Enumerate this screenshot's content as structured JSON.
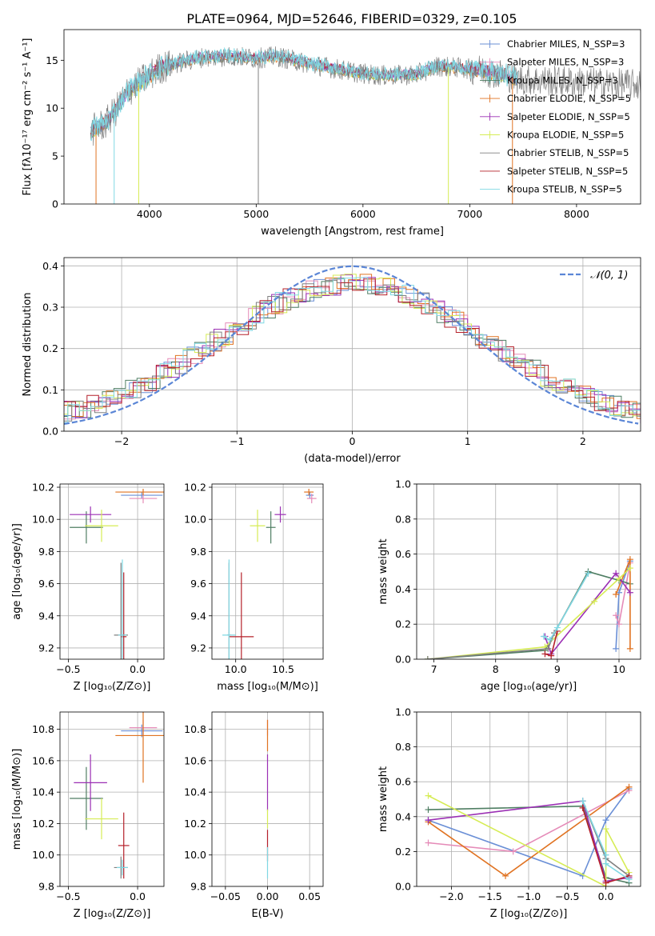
{
  "figure": {
    "title": "PLATE=0964, MJD=52646, FIBERID=0329, z=0.105"
  },
  "colors": {
    "chabrier_miles": "#6a8fd6",
    "salpeter_miles": "#e58bb8",
    "kroupa_miles": "#4f7e63",
    "chabrier_elodie": "#e07322",
    "salpeter_elodie": "#9b2fb4",
    "kroupa_elodie": "#d6ec55",
    "chabrier_stelib": "#808080",
    "salpeter_stelib": "#b5202a",
    "kroupa_stelib": "#7fd8e3"
  },
  "chart_data": [
    {
      "id": "spectrum",
      "type": "line",
      "xlabel": "wavelength [Angstrom, rest frame]",
      "ylabel": "Flux [fλ10⁻¹⁷ erg cm⁻² s⁻¹ A⁻¹]",
      "xlim": [
        3200,
        8600
      ],
      "ylim": [
        0,
        18.2
      ],
      "xticks": [
        4000,
        5000,
        6000,
        7000,
        8000
      ],
      "yticks": [
        0,
        5,
        10,
        15
      ],
      "legend": "top-right",
      "legend_entries": [
        "Chabrier MILES, N_SSP=3",
        "Salpeter MILES, N_SSP=3",
        "Kroupa MILES, N_SSP=3",
        "Chabrier ELODIE, N_SSP=5",
        "Salpeter ELODIE, N_SSP=5",
        "Kroupa ELODIE, N_SSP=5",
        "Chabrier STELIB, N_SSP=5",
        "Salpeter STELIB, N_SSP=5",
        "Kroupa STELIB, N_SSP=5"
      ],
      "continuum": {
        "x": [
          3450,
          3600,
          3700,
          3800,
          3950,
          4100,
          4300,
          4500,
          4800,
          5000,
          5200,
          5500,
          5800,
          6000,
          6200,
          6500,
          6700,
          6900,
          7100,
          7300,
          7450
        ],
        "y": [
          7.6,
          8.5,
          10.0,
          11.8,
          13.0,
          14.2,
          14.8,
          15.3,
          15.4,
          15.2,
          15.4,
          14.6,
          14.0,
          13.6,
          13.4,
          13.5,
          14.4,
          14.2,
          14.0,
          13.5,
          13.0
        ]
      },
      "observed_range": [
        3450,
        8600
      ],
      "model_range": [
        3450,
        7450
      ],
      "dropouts": [
        {
          "x": 3500,
          "series": "chabrier_elodie"
        },
        {
          "x": 3670,
          "series": "kroupa_stelib"
        },
        {
          "x": 3900,
          "series": "kroupa_elodie"
        },
        {
          "x": 5020,
          "series": "chabrier_stelib"
        },
        {
          "x": 6800,
          "series": "kroupa_elodie"
        },
        {
          "x": 7400,
          "series": "chabrier_elodie"
        }
      ]
    },
    {
      "id": "residuals",
      "type": "line",
      "xlabel": "(data-model)/error",
      "ylabel": "Normed distribution",
      "xlim": [
        -2.5,
        2.5
      ],
      "ylim": [
        0,
        0.42
      ],
      "xticks": [
        -2,
        -1,
        0,
        1,
        2
      ],
      "yticks": [
        0.0,
        0.1,
        0.2,
        0.3,
        0.4
      ],
      "grid": true,
      "legend": "top-right",
      "legend_entries": [
        "𝒩(0, 1)"
      ],
      "bin_width": 0.1
    },
    {
      "id": "age_vs_z",
      "type": "scatter",
      "xlabel": "Z [log₁₀(Z/Z⊙)]",
      "ylabel": "age  [log₁₀(age/yr)]",
      "xlim": [
        -0.56,
        0.19
      ],
      "ylim": [
        9.13,
        10.22
      ],
      "xticks": [
        -0.5,
        0.0
      ],
      "yticks": [
        9.2,
        9.4,
        9.6,
        9.8,
        10.0,
        10.2
      ],
      "grid": true,
      "points": [
        {
          "series": "chabrier_miles",
          "x": 0.03,
          "y": 10.15,
          "xerr": 0.15,
          "yerr": 0.02
        },
        {
          "series": "salpeter_miles",
          "x": 0.04,
          "y": 10.13,
          "xerr": 0.1,
          "yerr": 0.03
        },
        {
          "series": "kroupa_miles",
          "x": -0.37,
          "y": 9.95,
          "xerr": 0.12,
          "yerr": 0.1
        },
        {
          "series": "chabrier_elodie",
          "x": 0.04,
          "y": 10.17,
          "xerr": 0.2,
          "yerr": 0.02
        },
        {
          "series": "salpeter_elodie",
          "x": -0.34,
          "y": 10.03,
          "xerr": 0.15,
          "yerr": 0.05
        },
        {
          "series": "kroupa_elodie",
          "x": -0.26,
          "y": 9.96,
          "xerr": 0.12,
          "yerr": 0.1
        },
        {
          "series": "chabrier_stelib",
          "x": -0.12,
          "y": 9.28,
          "xerr": 0.05,
          "yerr": 0.45
        },
        {
          "series": "salpeter_stelib",
          "x": -0.1,
          "y": 9.27,
          "xerr": 0.02,
          "yerr": 0.4
        },
        {
          "series": "kroupa_stelib",
          "x": -0.11,
          "y": 9.28,
          "xerr": 0.03,
          "yerr": 0.47
        }
      ]
    },
    {
      "id": "age_vs_mass",
      "type": "scatter",
      "xlabel": "mass [log₁₀(M/M⊙)]",
      "ylabel": "",
      "xlim": [
        9.75,
        10.92
      ],
      "ylim": [
        9.13,
        10.22
      ],
      "xticks": [
        10.0,
        10.5
      ],
      "yticks": [
        9.2,
        9.4,
        9.6,
        9.8,
        10.0,
        10.2
      ],
      "grid": true,
      "points": [
        {
          "series": "chabrier_miles",
          "x": 10.78,
          "y": 10.15,
          "xerr": 0.04,
          "yerr": 0.02
        },
        {
          "series": "salpeter_miles",
          "x": 10.8,
          "y": 10.13,
          "xerr": 0.05,
          "yerr": 0.03
        },
        {
          "series": "kroupa_miles",
          "x": 10.37,
          "y": 9.95,
          "xerr": 0.05,
          "yerr": 0.1
        },
        {
          "series": "chabrier_elodie",
          "x": 10.77,
          "y": 10.17,
          "xerr": 0.05,
          "yerr": 0.02
        },
        {
          "series": "salpeter_elodie",
          "x": 10.47,
          "y": 10.03,
          "xerr": 0.06,
          "yerr": 0.05
        },
        {
          "series": "kroupa_elodie",
          "x": 10.23,
          "y": 9.96,
          "xerr": 0.08,
          "yerr": 0.1
        },
        {
          "series": "chabrier_stelib",
          "x": 9.93,
          "y": 9.28,
          "xerr": 0.02,
          "yerr": 0.45
        },
        {
          "series": "salpeter_stelib",
          "x": 10.06,
          "y": 9.27,
          "xerr": 0.13,
          "yerr": 0.4
        },
        {
          "series": "kroupa_stelib",
          "x": 9.93,
          "y": 9.28,
          "xerr": 0.07,
          "yerr": 0.47
        }
      ]
    },
    {
      "id": "weight_vs_age",
      "type": "line",
      "xlabel": "age  [log₁₀(age/yr)]",
      "ylabel": "mass weight",
      "xlim": [
        6.72,
        10.35
      ],
      "ylim": [
        0,
        1.0
      ],
      "xticks": [
        7,
        8,
        9,
        10
      ],
      "yticks": [
        0.0,
        0.2,
        0.4,
        0.6,
        0.8,
        1.0
      ],
      "grid": true,
      "series": [
        {
          "series": "chabrier_miles",
          "x": [
            9.95,
            10.0,
            10.18
          ],
          "y": [
            0.06,
            0.38,
            0.56
          ]
        },
        {
          "series": "salpeter_miles",
          "x": [
            9.95,
            10.0,
            10.18
          ],
          "y": [
            0.25,
            0.2,
            0.55
          ]
        },
        {
          "series": "kroupa_miles",
          "x": [
            6.9,
            8.8,
            9.5,
            10.0,
            10.18
          ],
          "y": [
            0.0,
            0.05,
            0.5,
            0.45,
            0.43
          ]
        },
        {
          "series": "chabrier_elodie",
          "x": [
            9.95,
            10.18,
            10.18
          ],
          "y": [
            0.37,
            0.57,
            0.06
          ]
        },
        {
          "series": "salpeter_elodie",
          "x": [
            8.8,
            8.9,
            9.95,
            10.18
          ],
          "y": [
            0.13,
            0.03,
            0.49,
            0.38
          ]
        },
        {
          "series": "kroupa_elodie",
          "x": [
            6.9,
            8.8,
            9.6,
            10.0,
            10.18
          ],
          "y": [
            0.0,
            0.07,
            0.33,
            0.46,
            0.52
          ]
        },
        {
          "series": "chabrier_stelib",
          "x": [
            6.9,
            8.85,
            8.95,
            9.5
          ],
          "y": [
            0.0,
            0.06,
            0.15,
            0.49
          ]
        },
        {
          "series": "salpeter_stelib",
          "x": [
            8.8,
            8.9,
            9.0
          ],
          "y": [
            0.03,
            0.02,
            0.16
          ]
        },
        {
          "series": "kroupa_stelib",
          "x": [
            8.78,
            8.88,
            9.0,
            9.5
          ],
          "y": [
            0.13,
            0.11,
            0.18,
            0.49
          ]
        }
      ]
    },
    {
      "id": "mass_vs_z",
      "type": "scatter",
      "xlabel": "Z [log₁₀(Z/Z⊙)]",
      "ylabel": "mass [log₁₀(M/M⊙)]",
      "xlim": [
        -0.56,
        0.19
      ],
      "ylim": [
        9.8,
        10.91
      ],
      "xticks": [
        -0.5,
        0.0
      ],
      "yticks": [
        9.8,
        10.0,
        10.2,
        10.4,
        10.6,
        10.8
      ],
      "grid": true,
      "points": [
        {
          "series": "chabrier_miles",
          "x": 0.03,
          "y": 10.79,
          "xerr": 0.15,
          "yerr": 0.04
        },
        {
          "series": "salpeter_miles",
          "x": 0.04,
          "y": 10.81,
          "xerr": 0.1,
          "yerr": 0.05
        },
        {
          "series": "kroupa_miles",
          "x": -0.37,
          "y": 10.36,
          "xerr": 0.12,
          "yerr": 0.2
        },
        {
          "series": "chabrier_elodie",
          "x": 0.04,
          "y": 10.76,
          "xerr": 0.2,
          "yerr": 0.3
        },
        {
          "series": "salpeter_elodie",
          "x": -0.34,
          "y": 10.46,
          "xerr": 0.12,
          "yerr": 0.18
        },
        {
          "series": "kroupa_elodie",
          "x": -0.26,
          "y": 10.23,
          "xerr": 0.12,
          "yerr": 0.13
        },
        {
          "series": "chabrier_stelib",
          "x": -0.12,
          "y": 9.92,
          "xerr": 0.05,
          "yerr": 0.07
        },
        {
          "series": "salpeter_stelib",
          "x": -0.1,
          "y": 10.06,
          "xerr": 0.04,
          "yerr": 0.21
        },
        {
          "series": "kroupa_stelib",
          "x": -0.11,
          "y": 9.92,
          "xerr": 0.04,
          "yerr": 0.05
        }
      ]
    },
    {
      "id": "mass_vs_ebv",
      "type": "scatter",
      "xlabel": "E(B-V)",
      "ylabel": "",
      "xlim": [
        -0.066,
        0.066
      ],
      "ylim": [
        9.8,
        10.91
      ],
      "xticks": [
        -0.05,
        0.0,
        0.05
      ],
      "yticks": [
        9.8,
        10.0,
        10.2,
        10.4,
        10.6,
        10.8
      ],
      "grid": true,
      "points": [
        {
          "series": "salpeter_miles",
          "x": 0.0,
          "y": 10.81,
          "xerr": 0.0,
          "yerr": 0.05
        },
        {
          "series": "chabrier_elodie",
          "x": 0.0,
          "y": 10.76,
          "xerr": 0.0,
          "yerr": 0.1
        },
        {
          "series": "salpeter_elodie",
          "x": 0.0,
          "y": 10.46,
          "xerr": 0.0,
          "yerr": 0.18
        },
        {
          "series": "kroupa_elodie",
          "x": 0.0,
          "y": 10.23,
          "xerr": 0.0,
          "yerr": 0.06
        },
        {
          "series": "salpeter_stelib",
          "x": 0.0,
          "y": 10.06,
          "xerr": 0.0,
          "yerr": 0.1
        },
        {
          "series": "kroupa_stelib",
          "x": 0.0,
          "y": 9.95,
          "xerr": 0.0,
          "yerr": 0.1
        }
      ]
    },
    {
      "id": "weight_vs_z",
      "type": "line",
      "xlabel": "Z [log₁₀(Z/Z⊙)]",
      "ylabel": "mass weight",
      "xlim": [
        -2.45,
        0.45
      ],
      "ylim": [
        0,
        1.0
      ],
      "xticks": [
        -2.0,
        -1.5,
        -1.0,
        -0.5,
        0.0
      ],
      "yticks": [
        0.0,
        0.2,
        0.4,
        0.6,
        0.8,
        1.0
      ],
      "grid": true,
      "series": [
        {
          "series": "chabrier_miles",
          "x": [
            -2.3,
            -0.3,
            0.0,
            0.3
          ],
          "y": [
            0.38,
            0.06,
            0.38,
            0.56
          ]
        },
        {
          "series": "salpeter_miles",
          "x": [
            -2.3,
            -1.2,
            0.3
          ],
          "y": [
            0.25,
            0.2,
            0.55
          ]
        },
        {
          "series": "kroupa_miles",
          "x": [
            -2.3,
            -0.3,
            0.0,
            0.3
          ],
          "y": [
            0.44,
            0.46,
            0.05,
            0.02
          ]
        },
        {
          "series": "chabrier_elodie",
          "x": [
            -2.3,
            -1.3,
            0.3
          ],
          "y": [
            0.37,
            0.06,
            0.57
          ]
        },
        {
          "series": "salpeter_elodie",
          "x": [
            -2.3,
            -0.3,
            0.0,
            0.3
          ],
          "y": [
            0.38,
            0.49,
            0.03,
            0.05
          ]
        },
        {
          "series": "kroupa_elodie",
          "x": [
            -2.3,
            0.0,
            0.0,
            0.3
          ],
          "y": [
            0.52,
            0.0,
            0.33,
            0.08
          ]
        },
        {
          "series": "chabrier_stelib",
          "x": [
            -0.3,
            0.0,
            0.3
          ],
          "y": [
            0.49,
            0.16,
            0.06
          ]
        },
        {
          "series": "salpeter_stelib",
          "x": [
            -0.3,
            0.0,
            0.3
          ],
          "y": [
            0.45,
            0.02,
            0.06
          ]
        },
        {
          "series": "kroupa_stelib",
          "x": [
            -0.3,
            0.0,
            0.0,
            0.3
          ],
          "y": [
            0.49,
            0.18,
            0.13,
            0.04
          ]
        }
      ]
    }
  ]
}
